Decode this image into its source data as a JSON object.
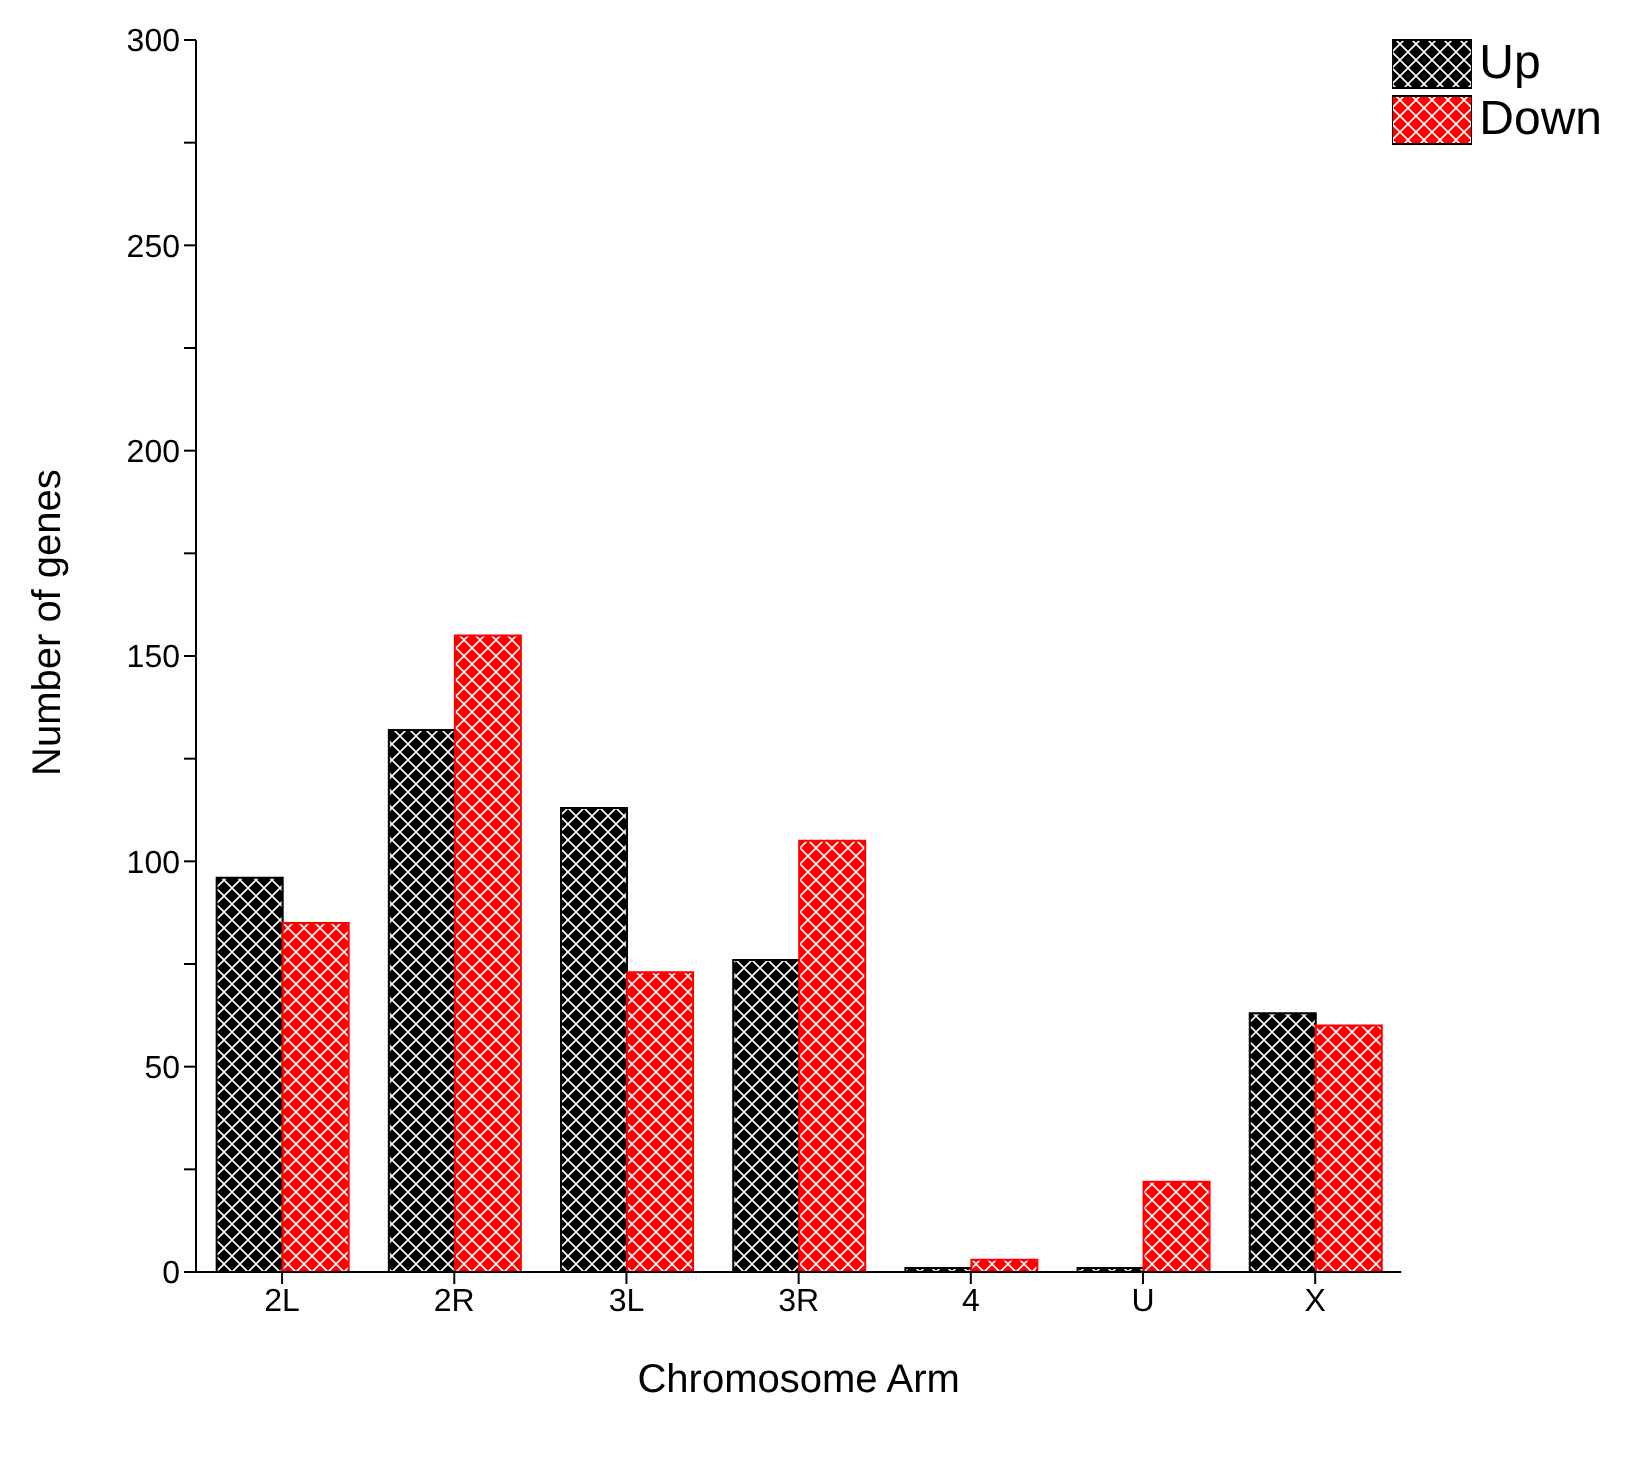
{
  "chart_data": {
    "type": "bar",
    "xlabel": "Chromosome Arm",
    "ylabel": "Number of genes",
    "categories": [
      "2L",
      "2R",
      "3L",
      "3R",
      "4",
      "U",
      "X"
    ],
    "series": [
      {
        "name": "Up",
        "color": "#000000",
        "values": [
          96,
          132,
          113,
          76,
          1,
          1,
          63
        ]
      },
      {
        "name": "Down",
        "color": "#ff0000",
        "values": [
          85,
          155,
          73,
          105,
          3,
          22,
          60
        ]
      }
    ],
    "ylim": [
      0,
      300
    ],
    "yticks": [
      0,
      {
        "value": 25,
        "label": null
      },
      50,
      {
        "value": 75,
        "label": null
      },
      100,
      {
        "value": 125,
        "label": null
      },
      150,
      {
        "value": 175,
        "label": null
      },
      200,
      {
        "value": 225,
        "label": null
      },
      250,
      {
        "value": 275,
        "label": null
      },
      300
    ],
    "grid": false,
    "legend": "top right"
  }
}
